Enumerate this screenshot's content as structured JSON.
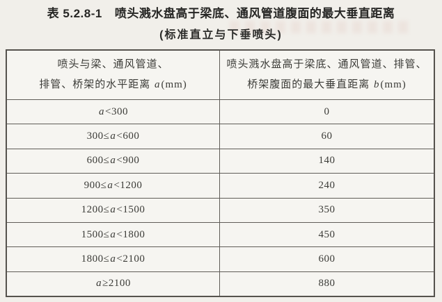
{
  "page": {
    "table_label": "表 5.2.8-1",
    "title": "喷头溅水盘高于梁底、通风管道腹面的最大垂直距离",
    "subtitle": "(标准直立与下垂喷头)"
  },
  "table": {
    "columns": [
      {
        "line1": "喷头与梁、通风管道、",
        "line2_text": "排管、桥架的水平距离 ",
        "symbol": "a",
        "unit": "(mm)"
      },
      {
        "line1": "喷头溅水盘高于梁底、通风管道、排管、",
        "line2_text": "桥架腹面的最大垂直距离 ",
        "symbol": "b",
        "unit": "(mm)"
      }
    ],
    "rows": [
      {
        "pre": "",
        "var": "a",
        "post": "<300",
        "value": "0"
      },
      {
        "pre": "300≤",
        "var": "a",
        "post": "<600",
        "value": "60"
      },
      {
        "pre": "600≤",
        "var": "a",
        "post": "<900",
        "value": "140"
      },
      {
        "pre": "900≤",
        "var": "a",
        "post": "<1200",
        "value": "240"
      },
      {
        "pre": "1200≤",
        "var": "a",
        "post": "<1500",
        "value": "350"
      },
      {
        "pre": "1500≤",
        "var": "a",
        "post": "<1800",
        "value": "450"
      },
      {
        "pre": "1800≤",
        "var": "a",
        "post": "<2100",
        "value": "600"
      },
      {
        "pre": "",
        "var": "a",
        "post": "≥2100",
        "value": "880"
      }
    ]
  }
}
